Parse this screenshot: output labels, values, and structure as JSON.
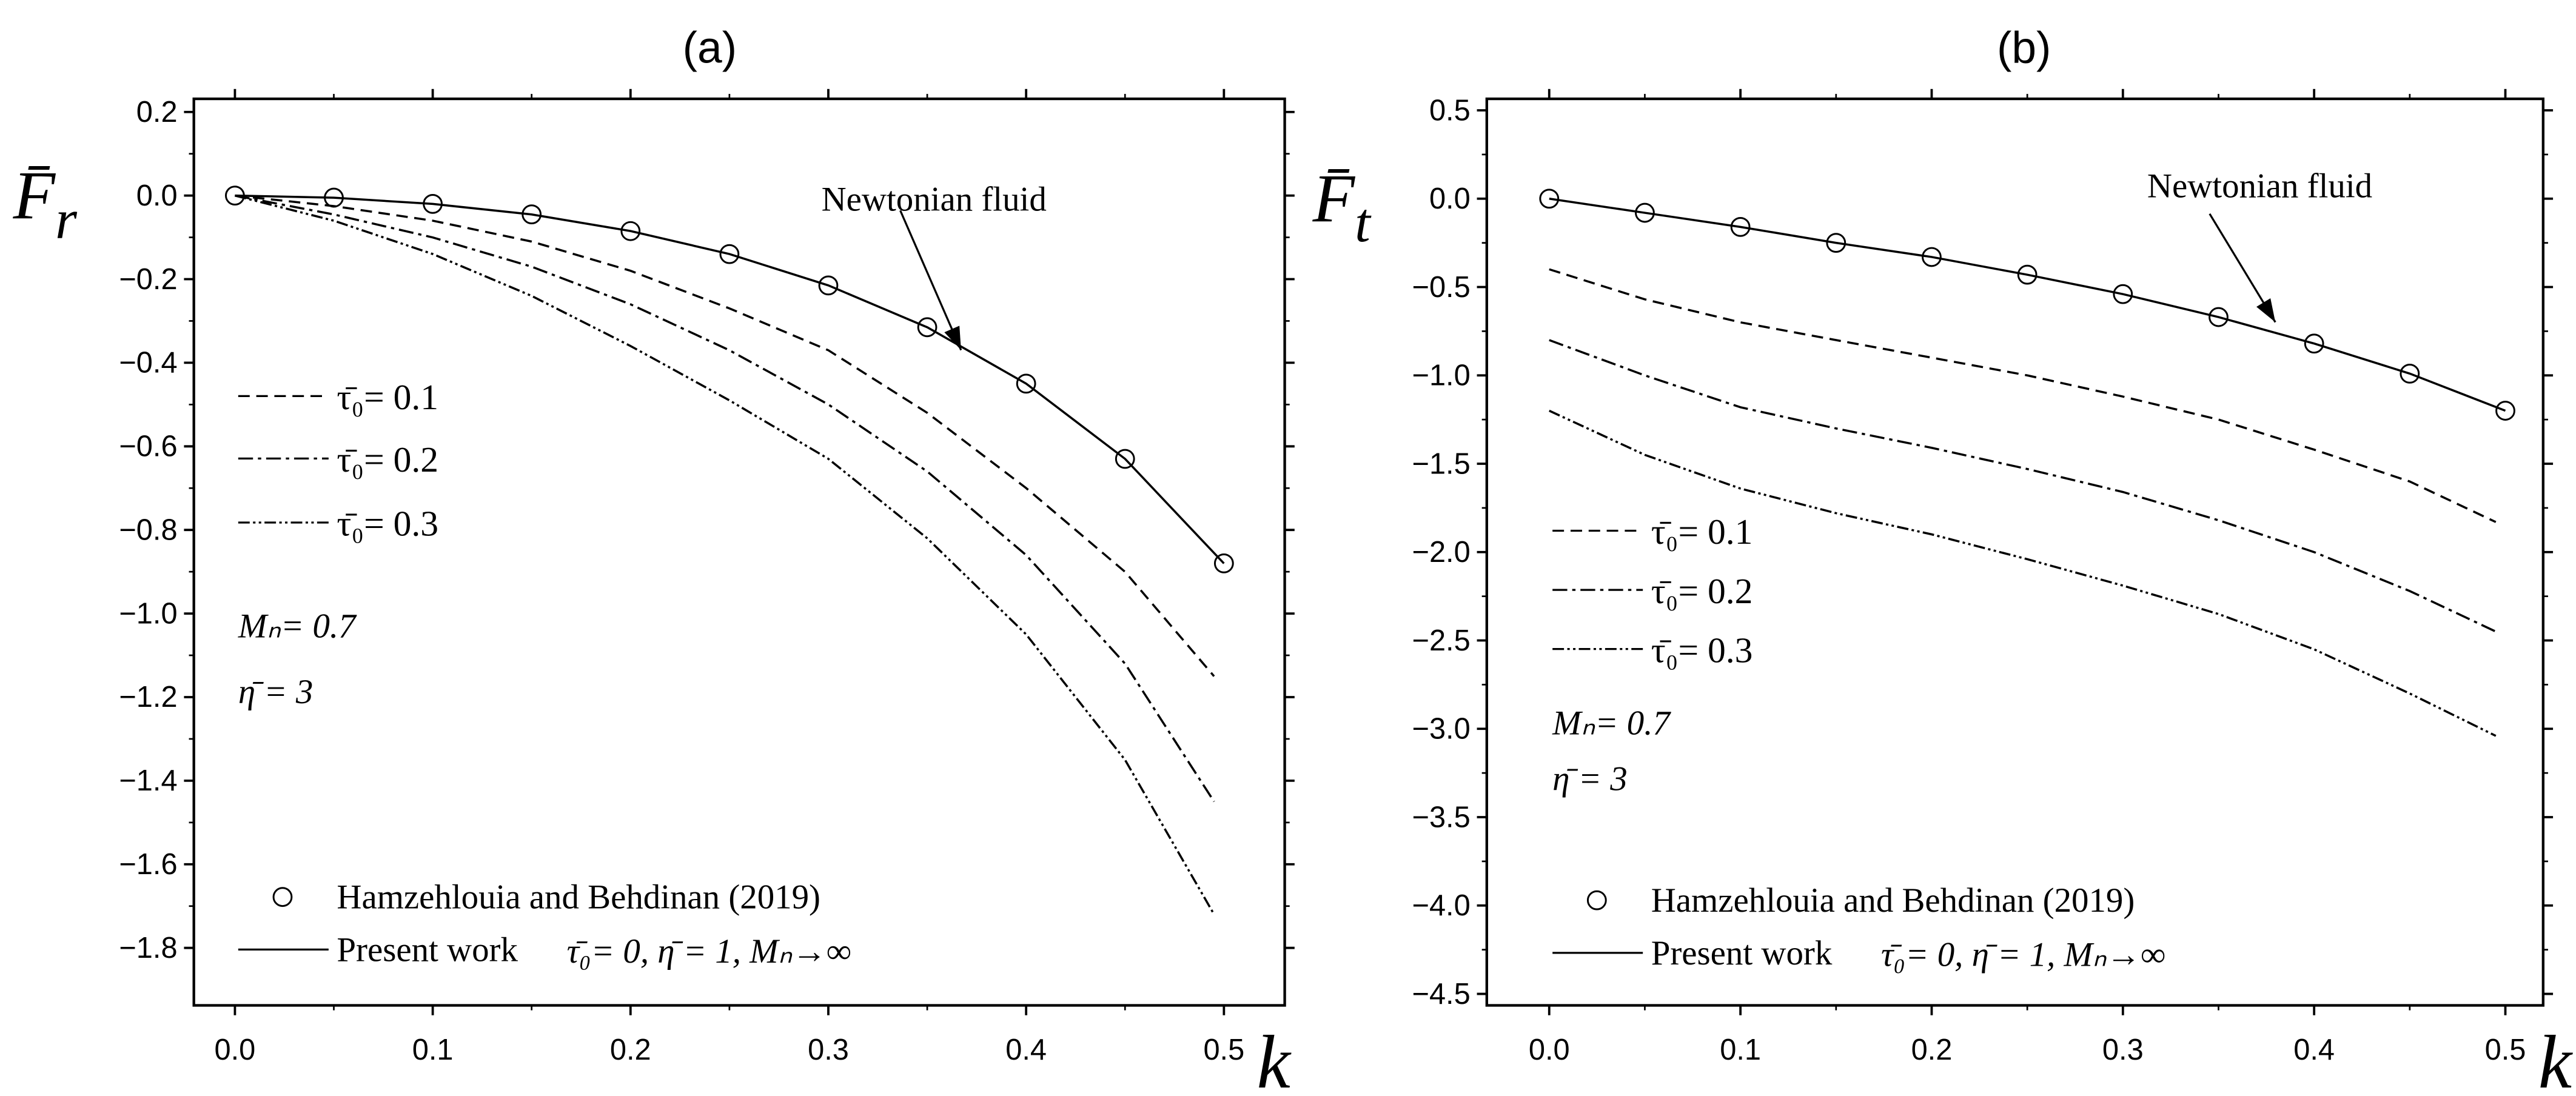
{
  "chart_data": [
    {
      "type": "line",
      "title": "(a)",
      "xlabel": "k",
      "ylabel": {
        "main": "F̄",
        "sub": "r"
      },
      "xlim": [
        -0.02,
        0.52
      ],
      "ylim": [
        -1.9,
        0.2
      ],
      "xticks": [
        0.0,
        0.1,
        0.2,
        0.3,
        0.4,
        0.5
      ],
      "xtick_labels": [
        "0.0",
        "0.1",
        "0.2",
        "0.3",
        "0.4",
        "0.5"
      ],
      "yticks": [
        0.2,
        0.0,
        -0.2,
        -0.4,
        -0.6,
        -0.8,
        -1.0,
        -1.2,
        -1.4,
        -1.6,
        -1.8
      ],
      "ytick_labels": [
        "0.2",
        "0.0",
        "−0.2",
        "−0.4",
        "−0.6",
        "−0.8",
        "−1.0",
        "−1.2",
        "−1.4",
        "−1.6",
        "−1.8"
      ],
      "x": [
        0,
        0.05,
        0.1,
        0.15,
        0.2,
        0.25,
        0.3,
        0.35,
        0.4,
        0.45,
        0.495
      ],
      "markers": {
        "name": "Hamzehlouia and Behdinan (2019)",
        "x": [
          0,
          0.05,
          0.1,
          0.15,
          0.2,
          0.25,
          0.3,
          0.35,
          0.4,
          0.45,
          0.5
        ],
        "values": [
          0,
          -0.005,
          -0.02,
          -0.045,
          -0.085,
          -0.14,
          -0.215,
          -0.315,
          -0.45,
          -0.63,
          -0.88
        ]
      },
      "series": [
        {
          "name": "Present work",
          "style": "solid",
          "x": [
            0,
            0.05,
            0.1,
            0.15,
            0.2,
            0.25,
            0.3,
            0.35,
            0.4,
            0.45,
            0.5
          ],
          "values": [
            0,
            -0.005,
            -0.02,
            -0.045,
            -0.085,
            -0.14,
            -0.215,
            -0.315,
            -0.45,
            -0.63,
            -0.88
          ]
        },
        {
          "name": "τ̄₀= 0.1",
          "style": "dash",
          "values": [
            0,
            -0.025,
            -0.06,
            -0.11,
            -0.18,
            -0.27,
            -0.37,
            -0.52,
            -0.7,
            -0.9,
            -1.15
          ]
        },
        {
          "name": "τ̄₀= 0.2",
          "style": "dashdot",
          "values": [
            0,
            -0.045,
            -0.1,
            -0.17,
            -0.26,
            -0.37,
            -0.5,
            -0.66,
            -0.86,
            -1.12,
            -1.45
          ]
        },
        {
          "name": "τ̄₀= 0.3",
          "style": "dashdotdot",
          "values": [
            0,
            -0.06,
            -0.14,
            -0.24,
            -0.36,
            -0.49,
            -0.63,
            -0.82,
            -1.05,
            -1.35,
            -1.72
          ]
        }
      ],
      "annotation": "Newtonian fluid",
      "params": [
        "Mₙ= 0.7",
        "η̄ = 3"
      ],
      "legend_present_params": "τ̄₀= 0,  η̄ = 1,  Mₙ→∞"
    },
    {
      "type": "line",
      "title": "(b)",
      "xlabel": "k",
      "ylabel": {
        "main": "F̄",
        "sub": "t"
      },
      "xlim": [
        -0.02,
        0.52
      ],
      "ylim": [
        -4.5,
        0.5
      ],
      "xticks": [
        0.0,
        0.1,
        0.2,
        0.3,
        0.4,
        0.5
      ],
      "xtick_labels": [
        "0.0",
        "0.1",
        "0.2",
        "0.3",
        "0.4",
        "0.5"
      ],
      "yticks": [
        0.5,
        0.0,
        -0.5,
        -1.0,
        -1.5,
        -2.0,
        -2.5,
        -3.0,
        -3.5,
        -4.0,
        -4.5
      ],
      "ytick_labels": [
        "0.5",
        "0.0",
        "−0.5",
        "−1.0",
        "−1.5",
        "−2.0",
        "−2.5",
        "−3.0",
        "−3.5",
        "−4.0",
        "−4.5"
      ],
      "x": [
        0,
        0.05,
        0.1,
        0.15,
        0.2,
        0.25,
        0.3,
        0.35,
        0.4,
        0.45,
        0.495
      ],
      "markers": {
        "name": "Hamzehlouia and Behdinan (2019)",
        "x": [
          0,
          0.05,
          0.1,
          0.15,
          0.2,
          0.25,
          0.3,
          0.35,
          0.4,
          0.45,
          0.5
        ],
        "values": [
          0,
          -0.08,
          -0.16,
          -0.25,
          -0.33,
          -0.43,
          -0.54,
          -0.67,
          -0.82,
          -0.99,
          -1.2
        ]
      },
      "series": [
        {
          "name": "Present work",
          "style": "solid",
          "x": [
            0,
            0.05,
            0.1,
            0.15,
            0.2,
            0.25,
            0.3,
            0.35,
            0.4,
            0.45,
            0.5
          ],
          "values": [
            0,
            -0.08,
            -0.16,
            -0.25,
            -0.33,
            -0.43,
            -0.54,
            -0.67,
            -0.82,
            -0.99,
            -1.2
          ]
        },
        {
          "name": "τ̄₀= 0.1",
          "style": "dash",
          "values": [
            -0.4,
            -0.57,
            -0.7,
            -0.8,
            -0.9,
            -1.0,
            -1.12,
            -1.25,
            -1.42,
            -1.6,
            -1.83
          ]
        },
        {
          "name": "τ̄₀= 0.2",
          "style": "dashdot",
          "values": [
            -0.8,
            -1.0,
            -1.18,
            -1.3,
            -1.41,
            -1.53,
            -1.66,
            -1.82,
            -2.0,
            -2.22,
            -2.45
          ]
        },
        {
          "name": "τ̄₀= 0.3",
          "style": "dashdotdot",
          "values": [
            -1.2,
            -1.45,
            -1.64,
            -1.78,
            -1.9,
            -2.04,
            -2.19,
            -2.35,
            -2.55,
            -2.8,
            -3.04
          ]
        }
      ],
      "annotation": "Newtonian fluid",
      "params": [
        "Mₙ= 0.7",
        "η̄ = 3"
      ],
      "legend_present_params": "τ̄₀= 0,  η̄ = 1,  Mₙ→∞"
    }
  ]
}
